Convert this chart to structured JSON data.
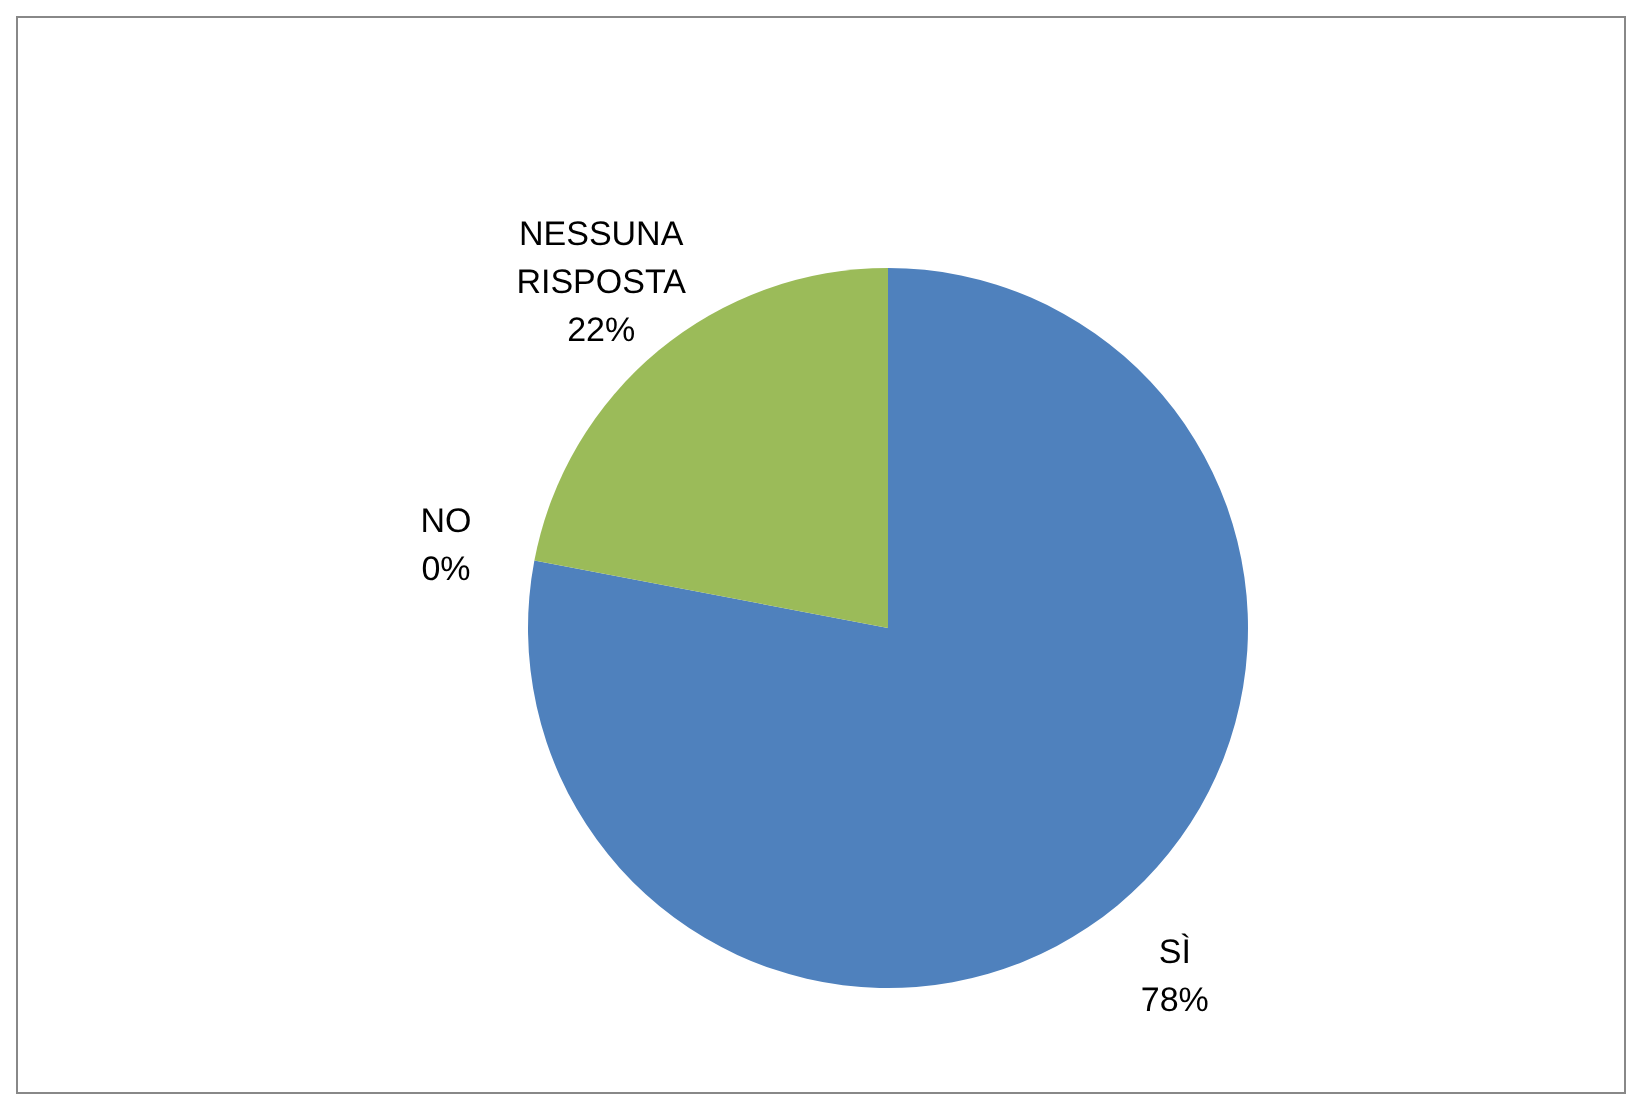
{
  "chart_data": {
    "type": "pie",
    "categories": [
      "SÌ",
      "NO",
      "NESSUNA RISPOSTA"
    ],
    "values": [
      78,
      0,
      22
    ],
    "colors": [
      "#4f81bd",
      "#c0504d",
      "#9bbb59"
    ],
    "value_labels": [
      "78%",
      "0%",
      "22%"
    ],
    "legend": false
  }
}
